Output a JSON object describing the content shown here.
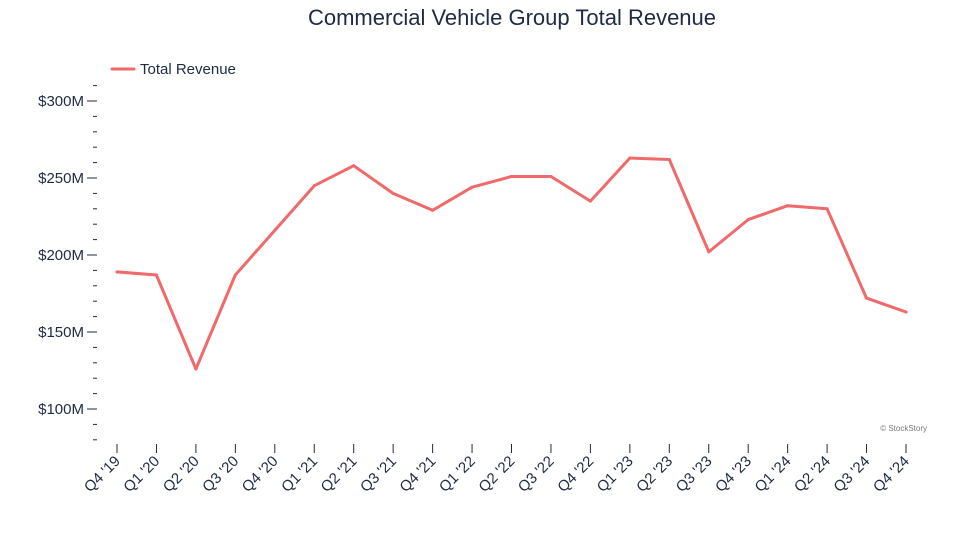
{
  "chart_data": {
    "type": "line",
    "title": "Commercial Vehicle Group Total Revenue",
    "xlabel": "",
    "ylabel": "",
    "categories": [
      "Q4 '19",
      "Q1 '20",
      "Q2 '20",
      "Q3 '20",
      "Q4 '20",
      "Q1 '21",
      "Q2 '21",
      "Q3 '21",
      "Q4 '21",
      "Q1 '22",
      "Q2 '22",
      "Q3 '22",
      "Q4 '22",
      "Q1 '23",
      "Q2 '23",
      "Q3 '23",
      "Q4 '23",
      "Q1 '24",
      "Q2 '24",
      "Q3 '24",
      "Q4 '24"
    ],
    "series": [
      {
        "name": "Total Revenue",
        "color": "#f0696b",
        "values": [
          189,
          187,
          126,
          187,
          216,
          245,
          258,
          240,
          229,
          244,
          251,
          251,
          235,
          263,
          262,
          202,
          223,
          232,
          230,
          172,
          163
        ]
      }
    ],
    "ylim": [
      80,
      310
    ],
    "major_ticks": [
      100,
      150,
      200,
      250,
      300
    ],
    "major_tick_labels": [
      "$100M",
      "$150M",
      "$200M",
      "$250M",
      "$300M"
    ],
    "minor_tick_step": 10,
    "grid": false,
    "legend_position": "top-left"
  },
  "watermark": "© StockStory"
}
